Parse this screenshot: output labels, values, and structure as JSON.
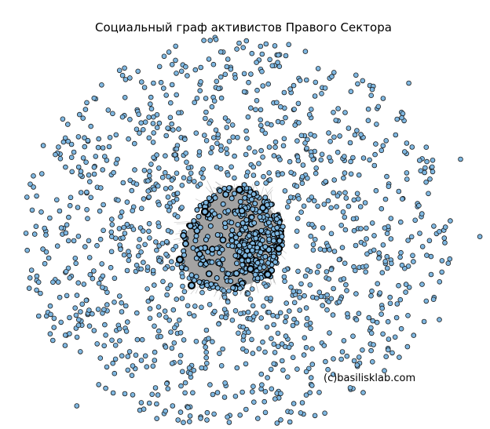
{
  "title": "Социальный граф активистов Правого Сектора",
  "credit": "(c)basilisklab.com",
  "colors": {
    "node_fill": "#7fb8e2",
    "node_stroke": "#1a1a1a",
    "edge": "#9e9e9e",
    "background": "#ffffff"
  }
}
